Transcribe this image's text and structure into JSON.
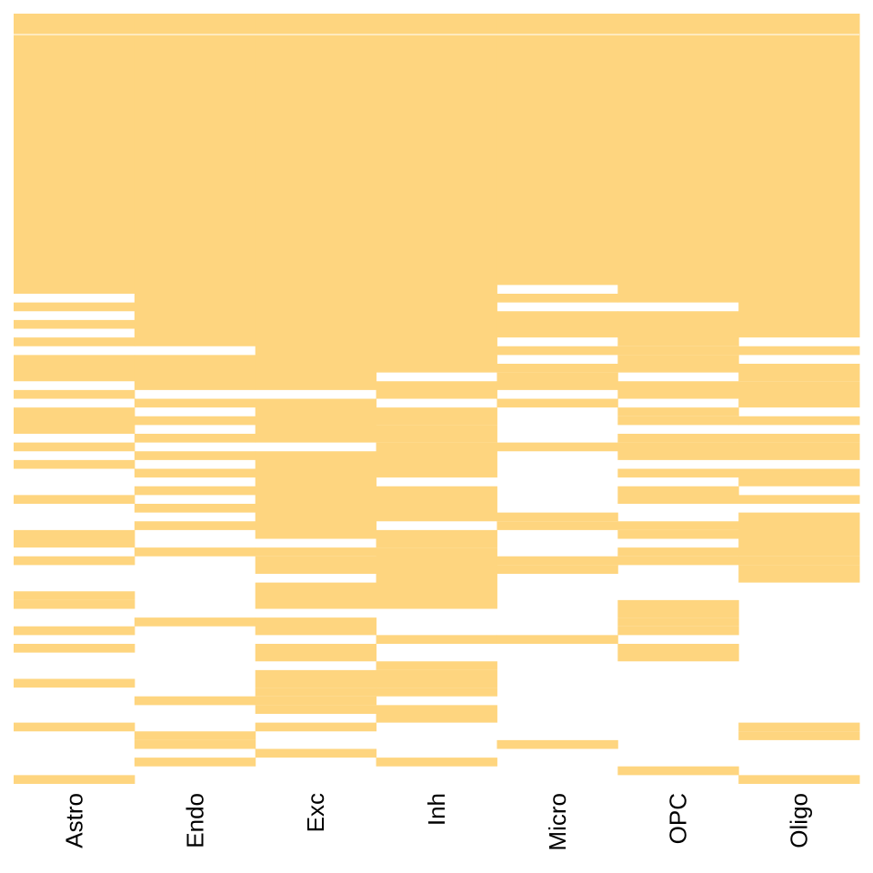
{
  "chart_data": {
    "type": "heatmap",
    "title": "",
    "xlabel": "",
    "ylabel": "",
    "categories": [
      "Astro",
      "Endo",
      "Exc",
      "Inh",
      "Micro",
      "OPC",
      "Oligo"
    ],
    "n_rows": 88,
    "fill_color": "#FED57F",
    "empty_color": "#FFFFFF",
    "presence_rows": [
      [
        [
          0,
          31
        ],
        [
          33,
          33
        ],
        [
          35,
          35
        ],
        [
          37,
          37
        ],
        [
          39,
          41
        ],
        [
          43,
          43
        ],
        [
          45,
          47
        ],
        [
          49,
          49
        ],
        [
          51,
          51
        ],
        [
          55,
          55
        ],
        [
          59,
          59
        ],
        [
          60,
          60
        ],
        [
          62,
          62
        ],
        [
          66,
          66
        ],
        [
          67,
          67
        ],
        [
          70,
          70
        ],
        [
          72,
          72
        ],
        [
          76,
          76
        ],
        [
          81,
          81
        ],
        [
          87,
          87
        ]
      ],
      [
        [
          0,
          37
        ],
        [
          39,
          42
        ],
        [
          44,
          44
        ],
        [
          46,
          46
        ],
        [
          48,
          48
        ],
        [
          50,
          50
        ],
        [
          52,
          52
        ],
        [
          54,
          54
        ],
        [
          56,
          56
        ],
        [
          58,
          58
        ],
        [
          61,
          61
        ],
        [
          69,
          69
        ],
        [
          78,
          78
        ],
        [
          82,
          82
        ],
        [
          83,
          83
        ],
        [
          85,
          85
        ]
      ],
      [
        [
          0,
          42
        ],
        [
          44,
          48
        ],
        [
          50,
          59
        ],
        [
          61,
          61
        ],
        [
          62,
          63
        ],
        [
          65,
          67
        ],
        [
          69,
          70
        ],
        [
          72,
          73
        ],
        [
          75,
          76
        ],
        [
          77,
          77
        ],
        [
          78,
          78
        ],
        [
          79,
          79
        ],
        [
          81,
          81
        ],
        [
          84,
          84
        ]
      ],
      [
        [
          0,
          40
        ],
        [
          42,
          43
        ],
        [
          45,
          46
        ],
        [
          47,
          48
        ],
        [
          49,
          52
        ],
        [
          54,
          55
        ],
        [
          56,
          57
        ],
        [
          59,
          59
        ],
        [
          60,
          60
        ],
        [
          61,
          63
        ],
        [
          64,
          67
        ],
        [
          71,
          71
        ],
        [
          74,
          74
        ],
        [
          75,
          76
        ],
        [
          77,
          77
        ],
        [
          79,
          79
        ],
        [
          80,
          80
        ],
        [
          85,
          85
        ]
      ],
      [
        [
          0,
          30
        ],
        [
          32,
          32
        ],
        [
          34,
          35
        ],
        [
          36,
          36
        ],
        [
          38,
          38
        ],
        [
          40,
          40
        ],
        [
          41,
          42
        ],
        [
          44,
          44
        ],
        [
          49,
          49
        ],
        [
          57,
          57
        ],
        [
          58,
          58
        ],
        [
          62,
          62
        ],
        [
          63,
          63
        ],
        [
          71,
          71
        ],
        [
          83,
          83
        ]
      ],
      [
        [
          0,
          32
        ],
        [
          34,
          35
        ],
        [
          36,
          37
        ],
        [
          38,
          38
        ],
        [
          39,
          40
        ],
        [
          42,
          43
        ],
        [
          45,
          45
        ],
        [
          46,
          46
        ],
        [
          48,
          48
        ],
        [
          49,
          50
        ],
        [
          52,
          52
        ],
        [
          54,
          55
        ],
        [
          58,
          58
        ],
        [
          59,
          59
        ],
        [
          61,
          61
        ],
        [
          62,
          62
        ],
        [
          67,
          68
        ],
        [
          69,
          69
        ],
        [
          70,
          70
        ],
        [
          72,
          73
        ],
        [
          86,
          86
        ]
      ],
      [
        [
          0,
          36
        ],
        [
          38,
          38
        ],
        [
          40,
          41
        ],
        [
          42,
          44
        ],
        [
          46,
          46
        ],
        [
          48,
          48
        ],
        [
          49,
          50
        ],
        [
          52,
          53
        ],
        [
          55,
          55
        ],
        [
          57,
          59
        ],
        [
          60,
          61
        ],
        [
          62,
          62
        ],
        [
          63,
          63
        ],
        [
          64,
          64
        ],
        [
          81,
          81
        ],
        [
          82,
          82
        ],
        [
          87,
          87
        ]
      ]
    ]
  }
}
